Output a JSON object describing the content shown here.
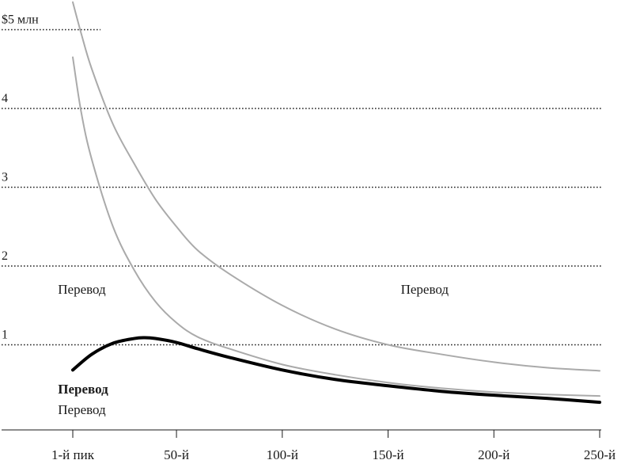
{
  "chart_data": {
    "type": "line",
    "xlabel": "",
    "ylabel": "",
    "x_ticks": [
      {
        "value": 1,
        "label": "1-й пик"
      },
      {
        "value": 50,
        "label": "50-й"
      },
      {
        "value": 100,
        "label": "100-й"
      },
      {
        "value": 150,
        "label": "150-й"
      },
      {
        "value": 200,
        "label": "200-й"
      },
      {
        "value": 250,
        "label": "250-й"
      }
    ],
    "y_ticks": [
      {
        "value": 1,
        "label": "1"
      },
      {
        "value": 2,
        "label": "2"
      },
      {
        "value": 3,
        "label": "3"
      },
      {
        "value": 4,
        "label": "4"
      },
      {
        "value": 5,
        "label": "$5 млн"
      }
    ],
    "xlim": [
      -32,
      250
    ],
    "ylim": [
      0,
      5.35
    ],
    "grid": "dotted horizontal",
    "series": [
      {
        "color": "#aaaaaa",
        "emphasis": false,
        "x": [
          1,
          5,
          10,
          20,
          30,
          40,
          50,
          60,
          75,
          100,
          125,
          150,
          175,
          200,
          225,
          250
        ],
        "y": [
          5.35,
          4.95,
          4.5,
          3.8,
          3.3,
          2.85,
          2.5,
          2.2,
          1.9,
          1.5,
          1.2,
          1.0,
          0.88,
          0.78,
          0.71,
          0.67
        ]
      },
      {
        "color": "#aaaaaa",
        "emphasis": false,
        "x": [
          1,
          5,
          10,
          20,
          30,
          40,
          50,
          60,
          75,
          100,
          125,
          150,
          175,
          200,
          225,
          250
        ],
        "y": [
          4.65,
          3.95,
          3.35,
          2.5,
          1.95,
          1.55,
          1.28,
          1.1,
          0.95,
          0.75,
          0.62,
          0.52,
          0.45,
          0.4,
          0.37,
          0.35
        ]
      },
      {
        "color": "#000000",
        "emphasis": true,
        "x": [
          1,
          10,
          20,
          30,
          35,
          40,
          50,
          60,
          75,
          100,
          125,
          150,
          175,
          200,
          225,
          250
        ],
        "y": [
          0.68,
          0.88,
          1.02,
          1.08,
          1.09,
          1.08,
          1.03,
          0.95,
          0.84,
          0.68,
          0.56,
          0.48,
          0.41,
          0.36,
          0.32,
          0.27
        ]
      }
    ],
    "annotations": [
      {
        "text": "Перевод",
        "x": -6,
        "y": 1.65,
        "bold": false
      },
      {
        "text": "Перевод",
        "x": 156,
        "y": 1.65,
        "bold": false
      },
      {
        "text": "Перевод",
        "x": -6,
        "y": 0.38,
        "bold": true
      },
      {
        "text": "Перевод",
        "x": -6,
        "y": 0.12,
        "bold": false
      }
    ]
  }
}
